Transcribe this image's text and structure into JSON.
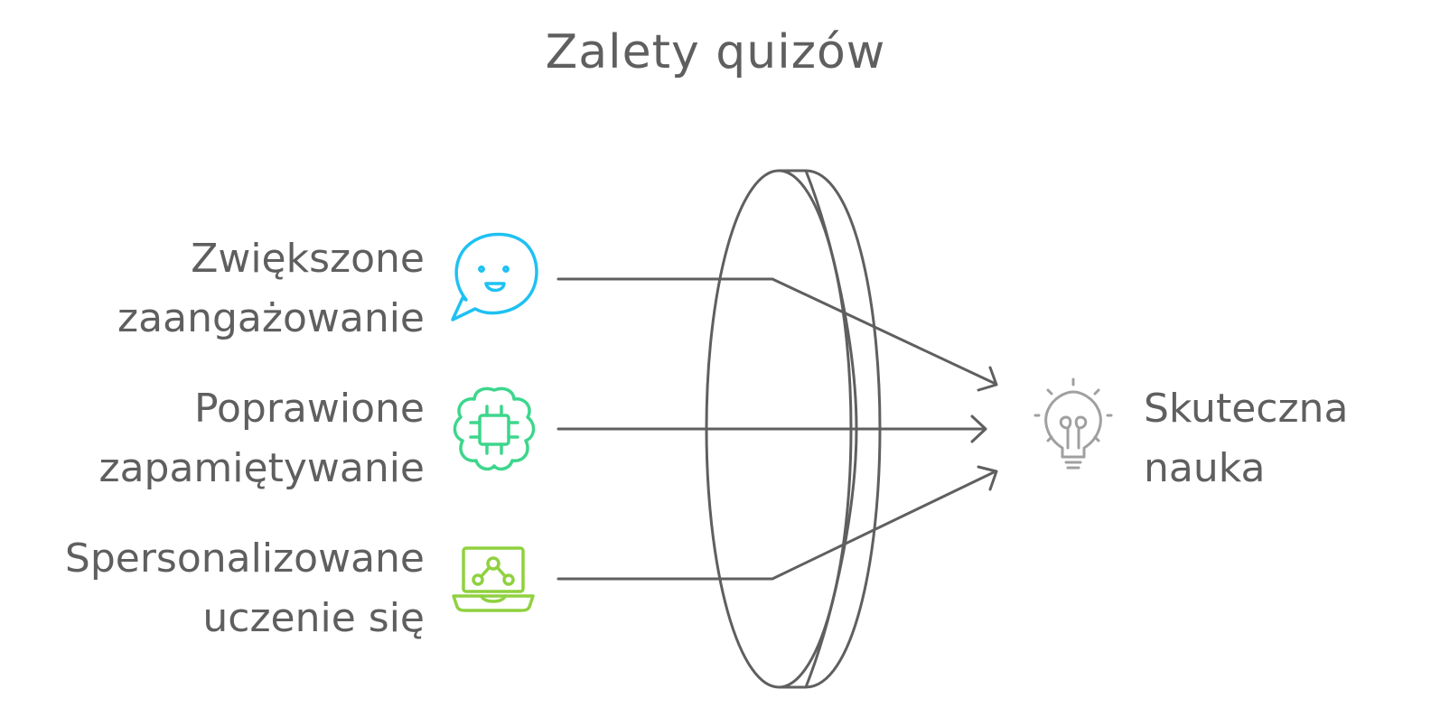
{
  "title": "Zalety quizów",
  "inputs": [
    {
      "line1": "Zwiększone",
      "line2": "zaangażowanie",
      "icon": "smiling-speech-bubble-icon",
      "color": "#1ec1f2"
    },
    {
      "line1": "Poprawione",
      "line2": "zapamiętywanie",
      "icon": "brain-chip-icon",
      "color": "#3dd68c"
    },
    {
      "line1": "Spersonalizowane",
      "line2": "uczenie się",
      "icon": "laptop-network-icon",
      "color": "#8fd13f"
    }
  ],
  "output": {
    "line1": "Skuteczna",
    "line2": "nauka",
    "icon": "lightbulb-icon",
    "color": "#a0a0a0"
  },
  "line_color": "#5f5f5f"
}
